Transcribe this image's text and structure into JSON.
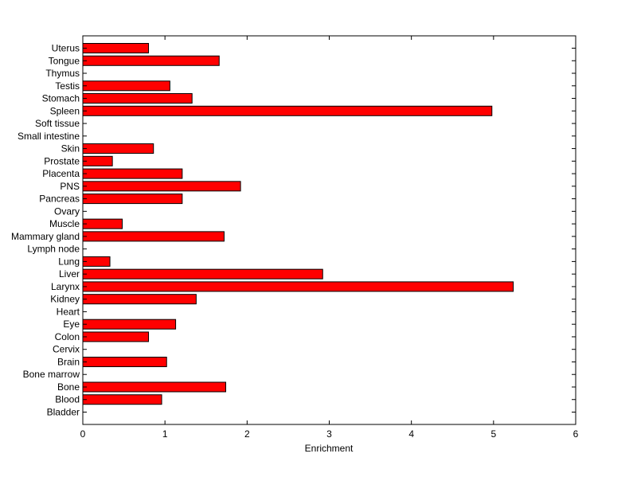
{
  "chart_data": {
    "type": "bar",
    "orientation": "horizontal",
    "title": "",
    "xlabel": "Enrichment",
    "ylabel": "",
    "xlim": [
      0,
      6
    ],
    "x_ticks": [
      "0",
      "1",
      "2",
      "3",
      "4",
      "5",
      "6"
    ],
    "grid": false,
    "bar_color": "#ff0000",
    "categories": [
      "Uterus",
      "Tongue",
      "Thymus",
      "Testis",
      "Stomach",
      "Spleen",
      "Soft tissue",
      "Small intestine",
      "Skin",
      "Prostate",
      "Placenta",
      "PNS",
      "Pancreas",
      "Ovary",
      "Muscle",
      "Mammary gland",
      "Lymph node",
      "Lung",
      "Liver",
      "Larynx",
      "Kidney",
      "Heart",
      "Eye",
      "Colon",
      "Cervix",
      "Brain",
      "Bone marrow",
      "Bone",
      "Blood",
      "Bladder"
    ],
    "values": [
      0.8,
      1.66,
      0,
      1.06,
      1.33,
      4.98,
      0,
      0,
      0.86,
      0.36,
      1.21,
      1.92,
      1.21,
      0,
      0.48,
      1.72,
      0,
      0.33,
      2.92,
      5.24,
      1.38,
      0,
      1.13,
      0.8,
      0,
      1.02,
      0,
      1.74,
      0.96,
      0
    ]
  }
}
